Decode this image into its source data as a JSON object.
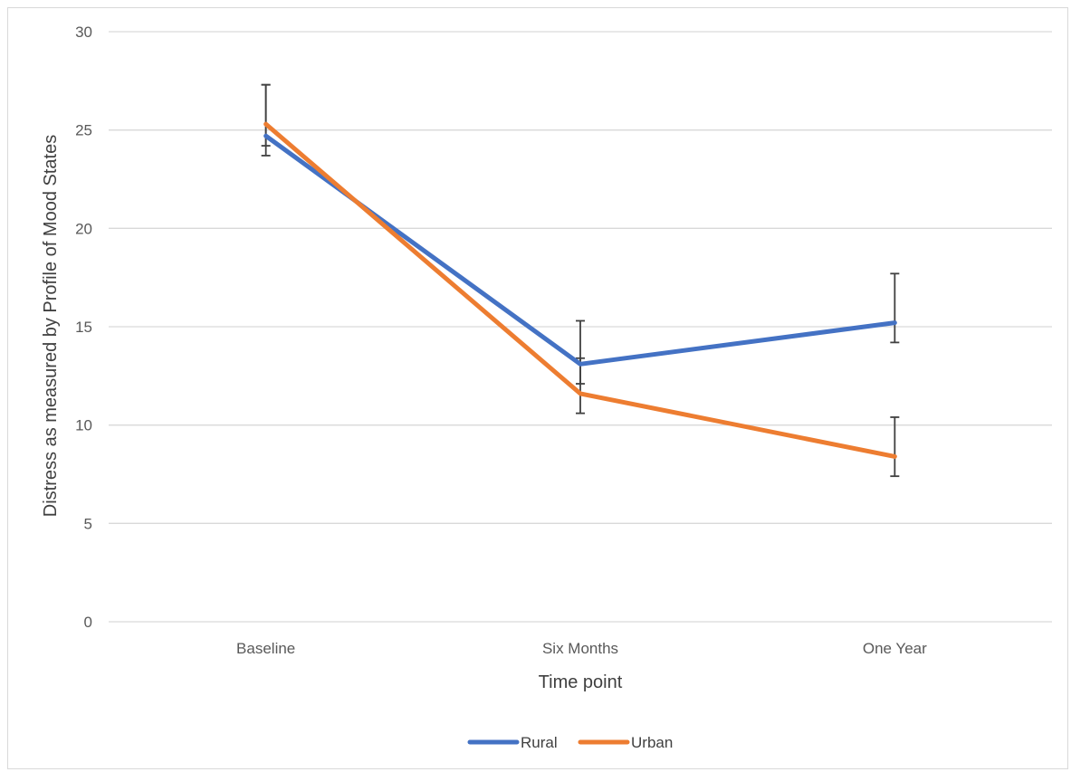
{
  "chart_data": {
    "type": "line",
    "categories": [
      "Baseline",
      "Six Months",
      "One Year"
    ],
    "series": [
      {
        "name": "Rural",
        "color": "#4472c4",
        "values": [
          24.7,
          13.1,
          15.2
        ],
        "error_plus": [
          2.6,
          2.2,
          2.5
        ],
        "error_minus": [
          0.5,
          1.0,
          1.0
        ]
      },
      {
        "name": "Urban",
        "color": "#ed7d31",
        "values": [
          25.3,
          11.6,
          8.4
        ],
        "error_plus": [
          2.0,
          1.8,
          2.0
        ],
        "error_minus": [
          1.6,
          1.0,
          1.0
        ]
      }
    ],
    "xlabel": "Time point",
    "ylabel": "Distress as measured by Profile of Mood States",
    "ylim": [
      0,
      30
    ],
    "yticks": [
      0,
      5,
      10,
      15,
      20,
      25,
      30
    ],
    "grid": "horizontal",
    "legend_position": "bottom",
    "gridline_color": "#d9d9d9",
    "errorbar_color": "#404040"
  }
}
